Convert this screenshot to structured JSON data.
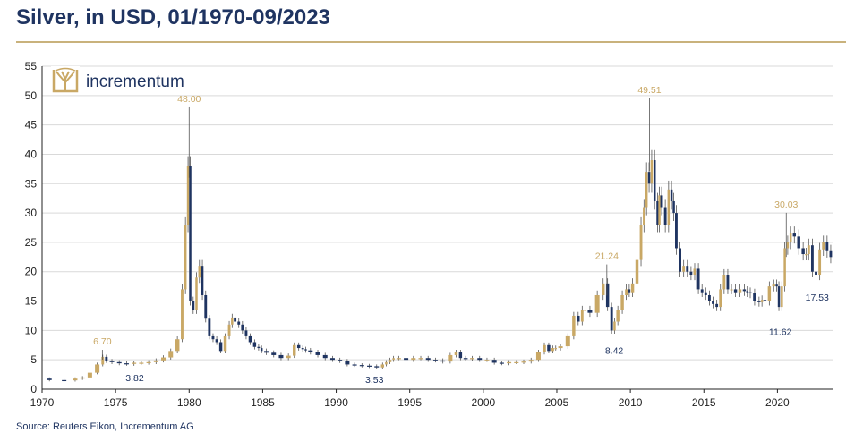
{
  "header": {
    "title": "Silver, in USD, 01/1970-09/2023"
  },
  "footer": {
    "source": "Source: Reuters Eikon, Incrementum AG"
  },
  "logo": {
    "text": "incrementum",
    "icon": "tree-icon"
  },
  "colors": {
    "up": "#c9a865",
    "down": "#1f3461",
    "annotation_high": "#c9a865",
    "annotation_low": "#1f3461",
    "grid": "#d9d9d9",
    "axis": "#222222"
  },
  "chart_data": {
    "type": "candlestick",
    "title": "Silver, in USD, 01/1970-09/2023",
    "xlabel": "",
    "ylabel": "",
    "xlim": [
      1970,
      2023.75
    ],
    "ylim": [
      0,
      55
    ],
    "y_ticks": [
      0,
      5,
      10,
      15,
      20,
      25,
      30,
      35,
      40,
      45,
      50,
      55
    ],
    "x_ticks": [
      1970,
      1975,
      1980,
      1985,
      1990,
      1995,
      2000,
      2005,
      2010,
      2015,
      2020
    ],
    "grid": "horizontal",
    "series_points": [
      [
        1970.0,
        1.8
      ],
      [
        1971.0,
        1.55
      ],
      [
        1972.0,
        1.5
      ],
      [
        1972.5,
        1.8
      ],
      [
        1973.0,
        2.0
      ],
      [
        1973.5,
        2.8
      ],
      [
        1974.0,
        4.2
      ],
      [
        1974.25,
        5.5
      ],
      [
        1974.5,
        4.8
      ],
      [
        1975.0,
        4.6
      ],
      [
        1975.5,
        4.4
      ],
      [
        1976.0,
        4.3
      ],
      [
        1976.5,
        4.5
      ],
      [
        1977.0,
        4.5
      ],
      [
        1977.5,
        4.6
      ],
      [
        1978.0,
        4.9
      ],
      [
        1978.5,
        5.4
      ],
      [
        1979.0,
        6.5
      ],
      [
        1979.4,
        8.5
      ],
      [
        1979.65,
        17.0
      ],
      [
        1979.85,
        28.0
      ],
      [
        1980.0,
        38.0
      ],
      [
        1980.15,
        15.0
      ],
      [
        1980.4,
        13.5
      ],
      [
        1980.6,
        19.0
      ],
      [
        1980.8,
        21.0
      ],
      [
        1981.0,
        16.0
      ],
      [
        1981.25,
        12.0
      ],
      [
        1981.5,
        9.0
      ],
      [
        1981.75,
        8.5
      ],
      [
        1982.0,
        8.0
      ],
      [
        1982.3,
        6.5
      ],
      [
        1982.6,
        9.0
      ],
      [
        1982.85,
        11.0
      ],
      [
        1983.0,
        12.2
      ],
      [
        1983.25,
        11.5
      ],
      [
        1983.5,
        11.0
      ],
      [
        1983.75,
        10.0
      ],
      [
        1984.0,
        9.0
      ],
      [
        1984.3,
        8.0
      ],
      [
        1984.6,
        7.2
      ],
      [
        1984.85,
        7.0
      ],
      [
        1985.0,
        6.5
      ],
      [
        1985.5,
        6.2
      ],
      [
        1986.0,
        5.8
      ],
      [
        1986.5,
        5.3
      ],
      [
        1987.0,
        5.7
      ],
      [
        1987.3,
        7.5
      ],
      [
        1987.6,
        7.0
      ],
      [
        1987.85,
        6.8
      ],
      [
        1988.0,
        6.6
      ],
      [
        1988.5,
        6.3
      ],
      [
        1989.0,
        5.8
      ],
      [
        1989.5,
        5.3
      ],
      [
        1990.0,
        5.0
      ],
      [
        1990.5,
        4.8
      ],
      [
        1991.0,
        4.2
      ],
      [
        1991.5,
        4.1
      ],
      [
        1992.0,
        4.0
      ],
      [
        1992.5,
        3.9
      ],
      [
        1993.0,
        3.7
      ],
      [
        1993.3,
        4.2
      ],
      [
        1993.5,
        4.6
      ],
      [
        1993.8,
        5.0
      ],
      [
        1994.0,
        5.3
      ],
      [
        1994.5,
        5.3
      ],
      [
        1995.0,
        5.0
      ],
      [
        1995.5,
        5.3
      ],
      [
        1996.0,
        5.3
      ],
      [
        1996.5,
        5.0
      ],
      [
        1997.0,
        4.9
      ],
      [
        1997.5,
        4.7
      ],
      [
        1998.0,
        5.8
      ],
      [
        1998.3,
        6.3
      ],
      [
        1998.6,
        5.3
      ],
      [
        1999.0,
        5.2
      ],
      [
        1999.5,
        5.3
      ],
      [
        2000.0,
        5.0
      ],
      [
        2000.5,
        5.0
      ],
      [
        2001.0,
        4.5
      ],
      [
        2001.5,
        4.4
      ],
      [
        2002.0,
        4.6
      ],
      [
        2002.5,
        4.6
      ],
      [
        2003.0,
        4.7
      ],
      [
        2003.5,
        5.0
      ],
      [
        2004.0,
        6.3
      ],
      [
        2004.3,
        7.5
      ],
      [
        2004.6,
        6.5
      ],
      [
        2004.85,
        7.0
      ],
      [
        2005.0,
        7.0
      ],
      [
        2005.5,
        7.3
      ],
      [
        2006.0,
        9.0
      ],
      [
        2006.3,
        12.5
      ],
      [
        2006.6,
        11.5
      ],
      [
        2006.85,
        13.5
      ],
      [
        2007.0,
        13.5
      ],
      [
        2007.5,
        13.0
      ],
      [
        2008.0,
        16.0
      ],
      [
        2008.3,
        18.0
      ],
      [
        2008.6,
        14.0
      ],
      [
        2008.85,
        10.0
      ],
      [
        2009.0,
        11.5
      ],
      [
        2009.3,
        13.5
      ],
      [
        2009.6,
        16.0
      ],
      [
        2009.85,
        17.0
      ],
      [
        2010.0,
        16.5
      ],
      [
        2010.3,
        18.0
      ],
      [
        2010.6,
        22.0
      ],
      [
        2010.85,
        28.0
      ],
      [
        2011.0,
        31.0
      ],
      [
        2011.2,
        37.0
      ],
      [
        2011.35,
        35.0
      ],
      [
        2011.55,
        39.0
      ],
      [
        2011.75,
        32.0
      ],
      [
        2011.95,
        28.0
      ],
      [
        2012.0,
        33.0
      ],
      [
        2012.25,
        31.0
      ],
      [
        2012.5,
        28.0
      ],
      [
        2012.7,
        34.0
      ],
      [
        2012.9,
        32.0
      ],
      [
        2013.0,
        30.0
      ],
      [
        2013.25,
        24.0
      ],
      [
        2013.5,
        20.0
      ],
      [
        2013.75,
        21.0
      ],
      [
        2014.0,
        20.0
      ],
      [
        2014.25,
        19.5
      ],
      [
        2014.5,
        20.5
      ],
      [
        2014.75,
        17.0
      ],
      [
        2015.0,
        16.5
      ],
      [
        2015.25,
        16.0
      ],
      [
        2015.5,
        15.0
      ],
      [
        2015.75,
        14.5
      ],
      [
        2016.0,
        14.0
      ],
      [
        2016.25,
        17.0
      ],
      [
        2016.5,
        19.5
      ],
      [
        2016.75,
        17.0
      ],
      [
        2017.0,
        17.0
      ],
      [
        2017.3,
        16.5
      ],
      [
        2017.6,
        17.0
      ],
      [
        2017.9,
        16.7
      ],
      [
        2018.0,
        16.5
      ],
      [
        2018.3,
        16.3
      ],
      [
        2018.6,
        15.0
      ],
      [
        2018.9,
        14.8
      ],
      [
        2019.0,
        15.2
      ],
      [
        2019.3,
        15.0
      ],
      [
        2019.6,
        17.5
      ],
      [
        2019.9,
        17.8
      ],
      [
        2020.0,
        17.5
      ],
      [
        2020.2,
        14.0
      ],
      [
        2020.4,
        17.5
      ],
      [
        2020.6,
        24.0
      ],
      [
        2020.8,
        25.0
      ],
      [
        2021.0,
        26.5
      ],
      [
        2021.3,
        26.0
      ],
      [
        2021.6,
        24.0
      ],
      [
        2021.9,
        23.0
      ],
      [
        2022.0,
        23.0
      ],
      [
        2022.25,
        24.5
      ],
      [
        2022.5,
        20.0
      ],
      [
        2022.75,
        19.5
      ],
      [
        2023.0,
        23.8
      ],
      [
        2023.25,
        25.0
      ],
      [
        2023.5,
        23.5
      ],
      [
        2023.75,
        22.5
      ]
    ],
    "annotations": [
      {
        "label": "6.70",
        "x": 1974.1,
        "y": 6.7,
        "kind": "high"
      },
      {
        "label": "3.82",
        "x": 1976.3,
        "y": 3.82,
        "kind": "low"
      },
      {
        "label": "48.00",
        "x": 1980.0,
        "y": 48.0,
        "kind": "high"
      },
      {
        "label": "3.53",
        "x": 1992.6,
        "y": 3.53,
        "kind": "low"
      },
      {
        "label": "21.24",
        "x": 2008.4,
        "y": 21.24,
        "kind": "high"
      },
      {
        "label": "8.42",
        "x": 2008.9,
        "y": 8.42,
        "kind": "low"
      },
      {
        "label": "49.51",
        "x": 2011.3,
        "y": 49.51,
        "kind": "high"
      },
      {
        "label": "30.03",
        "x": 2020.6,
        "y": 30.03,
        "kind": "high"
      },
      {
        "label": "11.62",
        "x": 2020.2,
        "y": 11.62,
        "kind": "low"
      },
      {
        "label": "17.53",
        "x": 2022.7,
        "y": 17.53,
        "kind": "low"
      }
    ]
  }
}
